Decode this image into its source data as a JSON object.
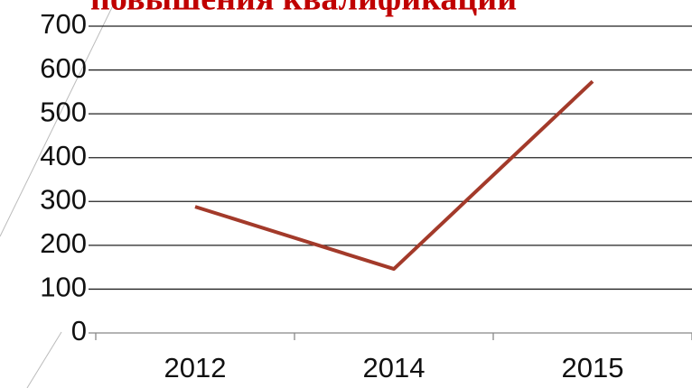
{
  "chart_data": {
    "type": "line",
    "title": "повышения квалификации",
    "categories": [
      "2012",
      "2014",
      "2015"
    ],
    "series": [
      {
        "name": "",
        "color": "#a33a2a",
        "values": [
          288,
          146,
          574
        ]
      }
    ],
    "ylim": [
      0,
      700
    ],
    "yticks": [
      0,
      100,
      200,
      300,
      400,
      500,
      600,
      700
    ],
    "grid": true
  }
}
